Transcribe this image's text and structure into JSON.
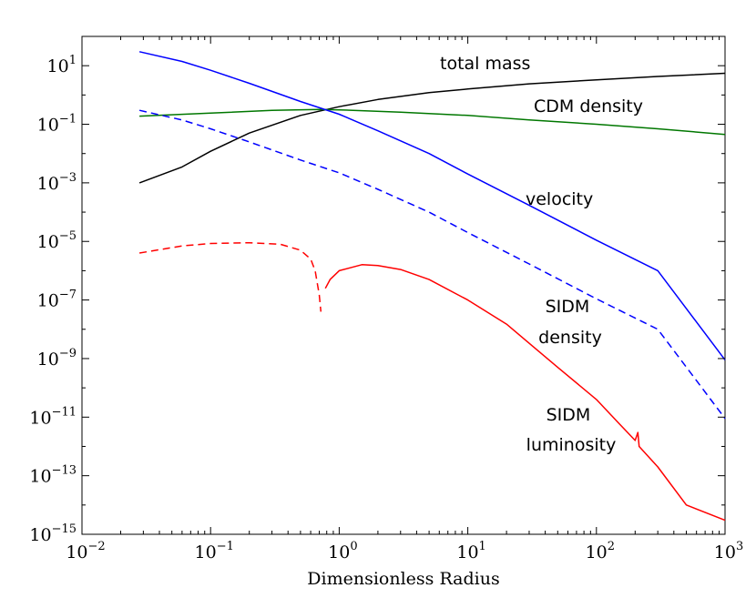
{
  "chart_data": {
    "type": "line",
    "title": "",
    "xlabel": "Dimensionless Radius",
    "ylabel": "",
    "xscale": "log",
    "yscale": "log",
    "xlim": [
      0.01,
      1000
    ],
    "ylim": [
      1e-15,
      100
    ],
    "grid": false,
    "x_ticks": [
      {
        "base": "10",
        "exp": "−2"
      },
      {
        "base": "10",
        "exp": "−1"
      },
      {
        "base": "10",
        "exp": "0"
      },
      {
        "base": "10",
        "exp": "1"
      },
      {
        "base": "10",
        "exp": "2"
      },
      {
        "base": "10",
        "exp": "3"
      }
    ],
    "y_ticks": [
      {
        "base": "10",
        "exp": "1"
      },
      {
        "base": "10",
        "exp": "−1"
      },
      {
        "base": "10",
        "exp": "−3"
      },
      {
        "base": "10",
        "exp": "−5"
      },
      {
        "base": "10",
        "exp": "−7"
      },
      {
        "base": "10",
        "exp": "−9"
      },
      {
        "base": "10",
        "exp": "−11"
      },
      {
        "base": "10",
        "exp": "−13"
      },
      {
        "base": "10",
        "exp": "−15"
      }
    ],
    "annotations": [
      {
        "id": "total-mass",
        "text": "total mass"
      },
      {
        "id": "cdm-density",
        "text": "CDM density"
      },
      {
        "id": "velocity",
        "text": "velocity"
      },
      {
        "id": "sidm-density",
        "text": "SIDM density"
      },
      {
        "id": "sidm-luminosity",
        "text": "SIDM luminosity"
      }
    ],
    "series": [
      {
        "name": "total mass",
        "color": "#000000",
        "style": "solid",
        "points": [
          [
            0.028,
            0.001
          ],
          [
            0.06,
            0.0035
          ],
          [
            0.1,
            0.012
          ],
          [
            0.2,
            0.05
          ],
          [
            0.5,
            0.2
          ],
          [
            1,
            0.4
          ],
          [
            2,
            0.7
          ],
          [
            5,
            1.2
          ],
          [
            10,
            1.6
          ],
          [
            30,
            2.4
          ],
          [
            100,
            3.3
          ],
          [
            300,
            4.3
          ],
          [
            1000,
            5.5
          ]
        ]
      },
      {
        "name": "CDM density",
        "color": "#007700",
        "style": "solid",
        "points": [
          [
            0.028,
            0.19
          ],
          [
            0.1,
            0.24
          ],
          [
            0.3,
            0.3
          ],
          [
            0.7,
            0.32
          ],
          [
            1,
            0.31
          ],
          [
            3,
            0.26
          ],
          [
            10,
            0.2
          ],
          [
            30,
            0.14
          ],
          [
            100,
            0.1
          ],
          [
            300,
            0.07
          ],
          [
            1000,
            0.045
          ]
        ]
      },
      {
        "name": "velocity",
        "color": "#0000ff",
        "style": "solid",
        "points": [
          [
            0.028,
            30
          ],
          [
            0.06,
            14
          ],
          [
            0.1,
            7
          ],
          [
            0.2,
            2.5
          ],
          [
            0.5,
            0.6
          ],
          [
            1,
            0.22
          ],
          [
            2,
            0.06
          ],
          [
            5,
            0.01
          ],
          [
            10,
            0.002
          ],
          [
            30,
            0.00017
          ],
          [
            100,
            1.1e-05
          ],
          [
            300,
            1e-06
          ],
          [
            1000,
            9e-10
          ]
        ]
      },
      {
        "name": "velocity (dashed)",
        "color": "#0000ff",
        "style": "dashed",
        "points": [
          [
            0.028,
            0.3
          ],
          [
            0.06,
            0.14
          ],
          [
            0.1,
            0.07
          ],
          [
            0.2,
            0.025
          ],
          [
            0.5,
            0.006
          ],
          [
            1,
            0.0022
          ],
          [
            2,
            0.0006
          ],
          [
            5,
            0.0001
          ],
          [
            10,
            2e-05
          ],
          [
            30,
            1.7e-06
          ],
          [
            100,
            1.1e-07
          ],
          [
            300,
            1e-08
          ],
          [
            1000,
            9e-12
          ]
        ]
      },
      {
        "name": "SIDM density",
        "color": "#ff0000",
        "style": "dashed",
        "points": [
          [
            0.028,
            4e-06
          ],
          [
            0.06,
            7e-06
          ],
          [
            0.1,
            8.5e-06
          ],
          [
            0.2,
            9e-06
          ],
          [
            0.35,
            8e-06
          ],
          [
            0.5,
            5e-06
          ],
          [
            0.6,
            2.5e-06
          ],
          [
            0.65,
            1e-06
          ],
          [
            0.7,
            1.5e-07
          ],
          [
            0.72,
            4e-08
          ]
        ]
      },
      {
        "name": "SIDM luminosity",
        "color": "#ff0000",
        "style": "solid",
        "points": [
          [
            0.78,
            2.5e-07
          ],
          [
            0.85,
            5e-07
          ],
          [
            1,
            1e-06
          ],
          [
            1.5,
            1.6e-06
          ],
          [
            2,
            1.5e-06
          ],
          [
            3,
            1.1e-06
          ],
          [
            5,
            5e-07
          ],
          [
            10,
            1e-07
          ],
          [
            20,
            1.5e-08
          ],
          [
            50,
            5e-10
          ],
          [
            100,
            4e-11
          ],
          [
            150,
            6e-12
          ],
          [
            200,
            1.6e-12
          ],
          [
            210,
            3e-12
          ],
          [
            215,
            1e-12
          ],
          [
            300,
            2e-13
          ],
          [
            500,
            1e-14
          ],
          [
            1000,
            3e-15
          ]
        ]
      }
    ]
  }
}
